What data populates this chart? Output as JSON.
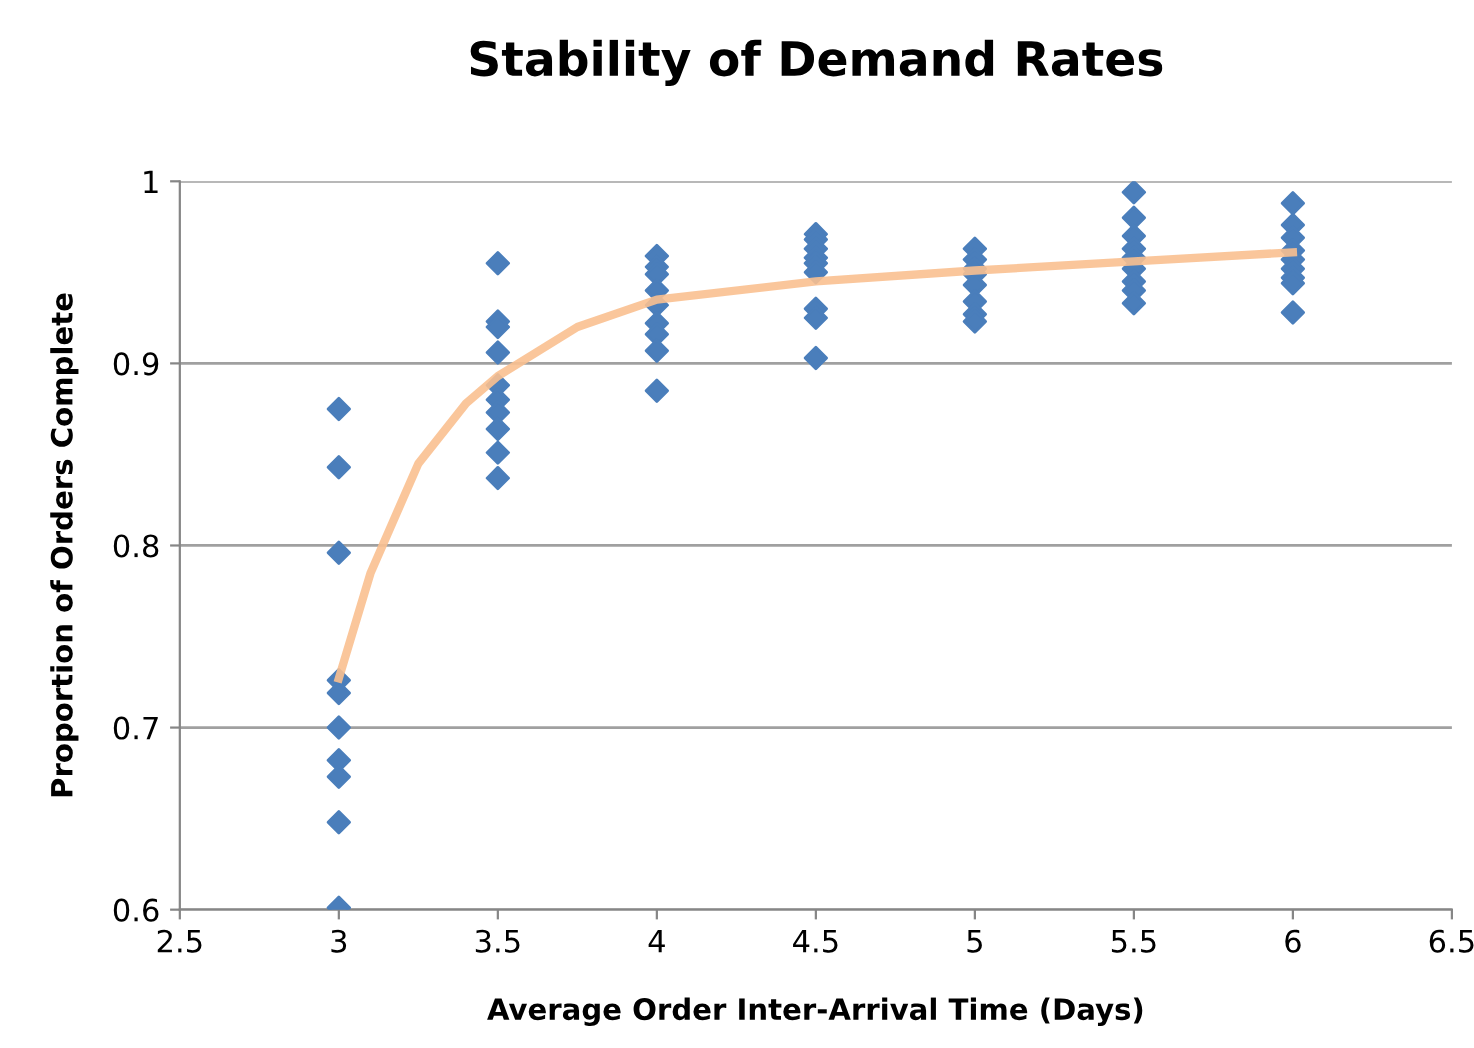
{
  "chart_data": {
    "type": "scatter",
    "title": "Stability of Demand Rates",
    "xlabel": "Average Order Inter-Arrival Time (Days)",
    "ylabel": "Proportion of Orders Complete",
    "series": [
      {
        "color": "#4a7ebb",
        "marker": "diamond",
        "x": [
          3,
          3,
          3,
          3,
          3,
          3,
          3,
          3,
          3,
          3,
          3.5,
          3.5,
          3.5,
          3.5,
          3.5,
          3.5,
          3.5,
          3.5,
          3.5,
          3.5,
          4,
          4,
          4,
          4,
          4,
          4,
          4,
          4,
          4,
          4.5,
          4.5,
          4.5,
          4.5,
          4.5,
          4.5,
          4.5,
          4.5,
          4.5,
          5,
          5,
          5,
          5,
          5,
          5,
          5,
          5,
          5.5,
          5.5,
          5.5,
          5.5,
          5.5,
          5.5,
          5.5,
          5.5,
          5.5,
          6,
          6,
          6,
          6,
          6,
          6,
          6,
          6,
          6
        ],
        "values": [
          0.875,
          0.843,
          0.796,
          0.726,
          0.719,
          0.7,
          0.682,
          0.673,
          0.648,
          0.601,
          0.955,
          0.923,
          0.92,
          0.906,
          0.888,
          0.88,
          0.873,
          0.864,
          0.851,
          0.837,
          0.959,
          0.953,
          0.949,
          0.94,
          0.932,
          0.922,
          0.916,
          0.907,
          0.885,
          0.971,
          0.968,
          0.963,
          0.958,
          0.955,
          0.95,
          0.93,
          0.925,
          0.903,
          0.963,
          0.957,
          0.952,
          0.949,
          0.943,
          0.934,
          0.927,
          0.923,
          0.994,
          0.98,
          0.97,
          0.963,
          0.958,
          0.952,
          0.945,
          0.94,
          0.933,
          0.988,
          0.976,
          0.969,
          0.962,
          0.957,
          0.952,
          0.947,
          0.944,
          0.928
        ]
      },
      {
        "type": "line",
        "color": "#fac090",
        "marker": "none",
        "x": [
          3,
          3.1,
          3.25,
          3.4,
          3.5,
          3.75,
          4,
          4.5,
          5,
          5.5,
          6
        ],
        "values": [
          0.727,
          0.785,
          0.845,
          0.878,
          0.893,
          0.92,
          0.935,
          0.945,
          0.951,
          0.956,
          0.961
        ]
      }
    ],
    "xlim": [
      2.5,
      6.5
    ],
    "xticks": [
      2.5,
      3,
      3.5,
      4,
      4.5,
      5,
      5.5,
      6,
      6.5
    ],
    "ylim": [
      0.6,
      1
    ],
    "yticks": [
      0.6,
      0.7,
      0.8,
      0.9,
      1
    ],
    "grid": "y"
  }
}
